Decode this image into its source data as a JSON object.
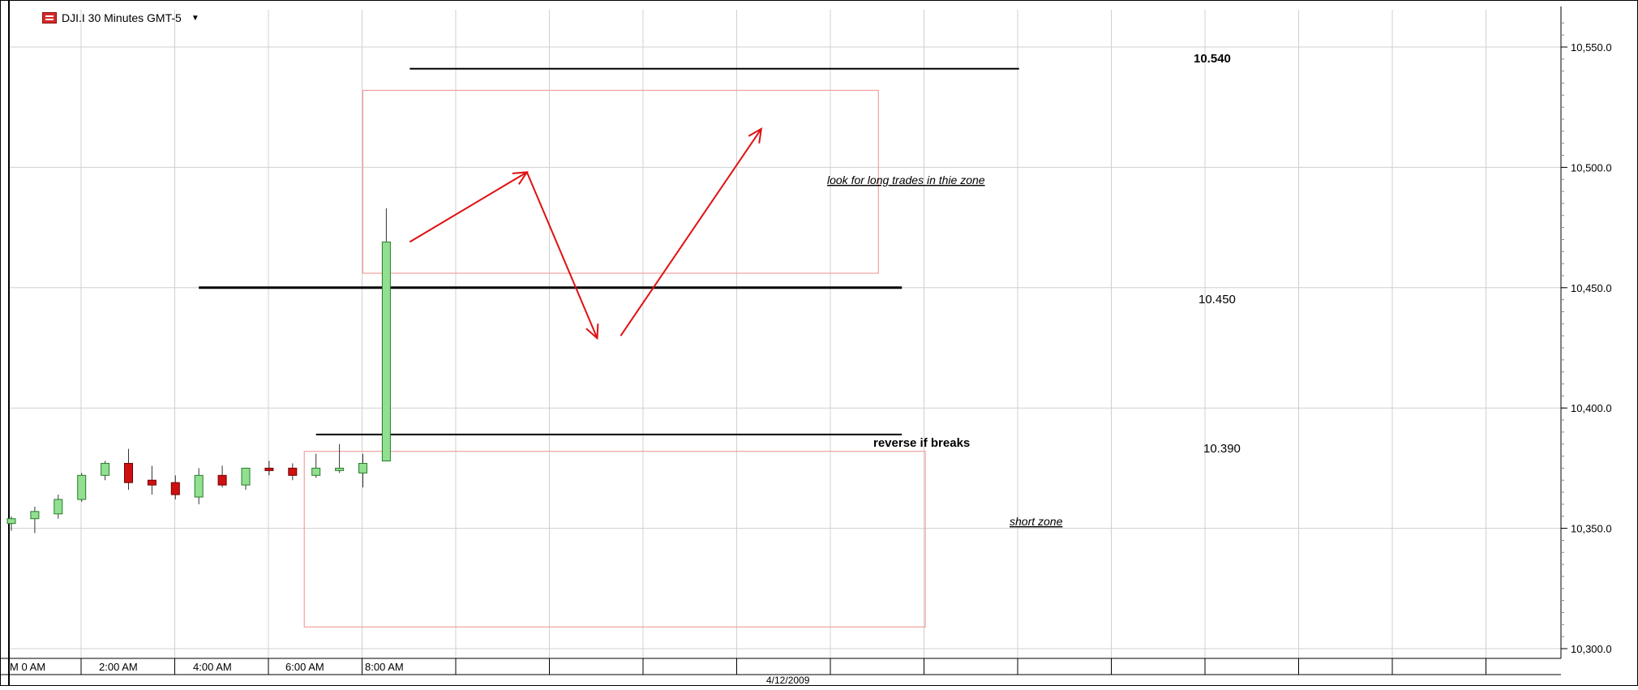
{
  "header": {
    "symbol_label": "DJI.I 30 Minutes GMT-5",
    "dropdown_icon": "caret-down-icon",
    "symbol_icon": "chart-symbol-icon"
  },
  "chart_data": {
    "type": "candlestick",
    "title": "",
    "symbol": "DJI.I",
    "interval": "30 Minutes",
    "timezone": "GMT-5",
    "date_label": "4/12/2009",
    "x_tick_labels": [
      "M 0 AM",
      "2:00 AM",
      "4:00 AM",
      "6:00 AM",
      "8:00 AM"
    ],
    "y_tick_labels": [
      "10,550.0",
      "10,500.0",
      "10,450.0",
      "10,400.0",
      "10,350.0",
      "10,300.0"
    ],
    "y_ticks": [
      10550,
      10500,
      10450,
      10400,
      10350,
      10300
    ],
    "ylim": [
      10295,
      10565
    ],
    "grid": true,
    "colors": {
      "up": "#90e090",
      "down": "#d01010",
      "wick": "#000000",
      "arrows": "#e01010",
      "zones": "#f0a0a0",
      "grid": "#d0d0d0"
    },
    "candles": [
      {
        "time": "0:00",
        "open": 10352,
        "high": 10355,
        "low": 10349,
        "close": 10354
      },
      {
        "time": "0:30",
        "open": 10354,
        "high": 10359,
        "low": 10348,
        "close": 10357
      },
      {
        "time": "1:00",
        "open": 10356,
        "high": 10364,
        "low": 10354,
        "close": 10362
      },
      {
        "time": "1:30",
        "open": 10362,
        "high": 10373,
        "low": 10361,
        "close": 10372
      },
      {
        "time": "2:00",
        "open": 10372,
        "high": 10378,
        "low": 10370,
        "close": 10377
      },
      {
        "time": "2:30",
        "open": 10377,
        "high": 10383,
        "low": 10366,
        "close": 10369
      },
      {
        "time": "3:00",
        "open": 10370,
        "high": 10376,
        "low": 10364,
        "close": 10368
      },
      {
        "time": "3:30",
        "open": 10369,
        "high": 10372,
        "low": 10362,
        "close": 10364
      },
      {
        "time": "4:00",
        "open": 10363,
        "high": 10375,
        "low": 10360,
        "close": 10372
      },
      {
        "time": "4:30",
        "open": 10372,
        "high": 10376,
        "low": 10367,
        "close": 10368
      },
      {
        "time": "5:00",
        "open": 10368,
        "high": 10375,
        "low": 10366,
        "close": 10375
      },
      {
        "time": "5:30",
        "open": 10375,
        "high": 10378,
        "low": 10372,
        "close": 10374
      },
      {
        "time": "6:00",
        "open": 10375,
        "high": 10377,
        "low": 10370,
        "close": 10372
      },
      {
        "time": "6:30",
        "open": 10372,
        "high": 10381,
        "low": 10371,
        "close": 10375
      },
      {
        "time": "7:00",
        "open": 10374,
        "high": 10385,
        "low": 10373,
        "close": 10375
      },
      {
        "time": "7:30",
        "open": 10373,
        "high": 10381,
        "low": 10367,
        "close": 10377
      },
      {
        "time": "8:00",
        "open": 10378,
        "high": 10483,
        "low": 10378,
        "close": 10469
      }
    ],
    "levels": [
      {
        "label": "10.540",
        "value": 10541,
        "x_from": "8:30",
        "x_to": "21:30"
      },
      {
        "label": "10.450",
        "value": 10450,
        "x_from": "4:00",
        "x_to": "19:00"
      },
      {
        "label": "10.390",
        "value": 10389,
        "x_from": "6:30",
        "x_to": "19:00"
      }
    ],
    "zones": [
      {
        "label": "look for long trades in thie zone",
        "from": 10456,
        "to": 10532,
        "x_from": "7:30",
        "x_to": "18:30"
      },
      {
        "label": "short zone",
        "from": 10309,
        "to": 10382,
        "x_from": "6:15",
        "x_to": "19:30"
      }
    ],
    "annotation": "reverse if breaks",
    "projection_path": [
      {
        "time": "8:30",
        "value": 10469
      },
      {
        "time": "11:00",
        "value": 10498
      },
      {
        "time": "12:30",
        "value": 10429
      },
      {
        "time": "13:00",
        "value": 10430
      },
      {
        "time": "16:00",
        "value": 10516
      }
    ]
  }
}
